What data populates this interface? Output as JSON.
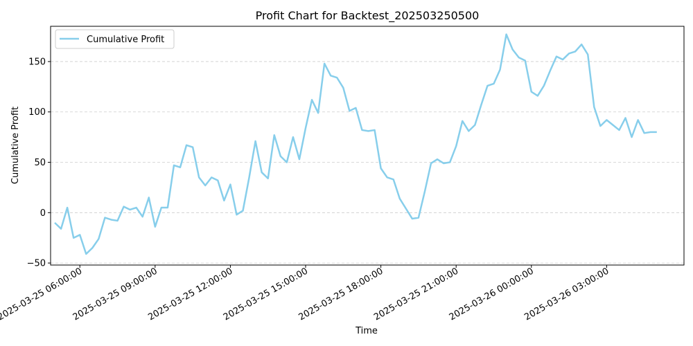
{
  "chart_data": {
    "type": "line",
    "title": "Profit Chart for Backtest_202503250500",
    "xlabel": "Time",
    "ylabel": "Cumulative Profit",
    "legend": {
      "position": "top-left"
    },
    "grid": {
      "x": false,
      "y": true,
      "style": "dashed"
    },
    "colors": {
      "series": "#87ceeb",
      "grid": "#cccccc",
      "axis": "#000000"
    },
    "x_ticks": [
      "2025-03-25 06:00:00",
      "2025-03-25 09:00:00",
      "2025-03-25 12:00:00",
      "2025-03-25 15:00:00",
      "2025-03-25 18:00:00",
      "2025-03-25 21:00:00",
      "2025-03-26 00:00:00",
      "2025-03-26 03:00:00"
    ],
    "xlim": [
      "2025-03-25 04:50",
      "2025-03-26 06:05"
    ],
    "y_ticks": [
      -50,
      0,
      50,
      100,
      150
    ],
    "ylim": [
      -52,
      185
    ],
    "series": [
      {
        "name": "Cumulative Profit",
        "x": [
          "2025-03-25 05:00",
          "2025-03-25 05:15",
          "2025-03-25 05:30",
          "2025-03-25 05:45",
          "2025-03-25 06:00",
          "2025-03-25 06:15",
          "2025-03-25 06:30",
          "2025-03-25 06:45",
          "2025-03-25 07:00",
          "2025-03-25 07:15",
          "2025-03-25 07:30",
          "2025-03-25 07:45",
          "2025-03-25 08:00",
          "2025-03-25 08:15",
          "2025-03-25 08:30",
          "2025-03-25 08:45",
          "2025-03-25 09:00",
          "2025-03-25 09:15",
          "2025-03-25 09:30",
          "2025-03-25 09:45",
          "2025-03-25 10:00",
          "2025-03-25 10:15",
          "2025-03-25 10:30",
          "2025-03-25 10:45",
          "2025-03-25 11:00",
          "2025-03-25 11:15",
          "2025-03-25 11:30",
          "2025-03-25 11:45",
          "2025-03-25 12:00",
          "2025-03-25 12:15",
          "2025-03-25 12:30",
          "2025-03-25 12:45",
          "2025-03-25 13:00",
          "2025-03-25 13:15",
          "2025-03-25 13:30",
          "2025-03-25 13:45",
          "2025-03-25 14:00",
          "2025-03-25 14:15",
          "2025-03-25 14:30",
          "2025-03-25 14:45",
          "2025-03-25 15:00",
          "2025-03-25 15:15",
          "2025-03-25 15:30",
          "2025-03-25 15:45",
          "2025-03-25 16:00",
          "2025-03-25 16:15",
          "2025-03-25 16:30",
          "2025-03-25 16:45",
          "2025-03-25 17:00",
          "2025-03-25 17:15",
          "2025-03-25 17:30",
          "2025-03-25 17:45",
          "2025-03-25 18:00",
          "2025-03-25 18:15",
          "2025-03-25 18:30",
          "2025-03-25 18:45",
          "2025-03-25 19:00",
          "2025-03-25 19:15",
          "2025-03-25 19:30",
          "2025-03-25 19:45",
          "2025-03-25 20:00",
          "2025-03-25 20:15",
          "2025-03-25 20:30",
          "2025-03-25 20:45",
          "2025-03-25 21:00",
          "2025-03-25 21:15",
          "2025-03-25 21:30",
          "2025-03-25 21:45",
          "2025-03-25 22:00",
          "2025-03-25 22:15",
          "2025-03-25 22:30",
          "2025-03-25 22:45",
          "2025-03-25 23:00",
          "2025-03-25 23:15",
          "2025-03-25 23:30",
          "2025-03-25 23:45",
          "2025-03-26 00:00",
          "2025-03-26 00:15",
          "2025-03-26 00:30",
          "2025-03-26 00:45",
          "2025-03-26 01:00",
          "2025-03-26 01:15",
          "2025-03-26 01:30",
          "2025-03-26 01:45",
          "2025-03-26 02:00",
          "2025-03-26 02:15",
          "2025-03-26 02:30",
          "2025-03-26 02:45",
          "2025-03-26 03:00",
          "2025-03-26 03:15",
          "2025-03-26 03:30",
          "2025-03-26 03:45",
          "2025-03-26 04:00",
          "2025-03-26 04:15",
          "2025-03-26 04:30",
          "2025-03-26 04:45",
          "2025-03-26 05:00"
        ],
        "values": [
          -10,
          -16,
          5,
          -25,
          -22,
          -41,
          -35,
          -26,
          -5,
          -7,
          -8,
          6,
          3,
          5,
          -4,
          15,
          -14,
          5,
          5,
          47,
          45,
          67,
          65,
          35,
          27,
          35,
          32,
          12,
          28,
          -2,
          2,
          35,
          71,
          40,
          34,
          77,
          56,
          50,
          75,
          53,
          84,
          112,
          99,
          148,
          136,
          134,
          124,
          101,
          104,
          82,
          81,
          82,
          44,
          35,
          33,
          14,
          4,
          -6,
          -5,
          21,
          49,
          53,
          49,
          50,
          66,
          91,
          81,
          87,
          107,
          126,
          128,
          142,
          177,
          162,
          154,
          151,
          120,
          116,
          126,
          141,
          155,
          152,
          158,
          160,
          167,
          157,
          105,
          86,
          92,
          87,
          82,
          94,
          75,
          92,
          79,
          80,
          80
        ]
      }
    ]
  }
}
